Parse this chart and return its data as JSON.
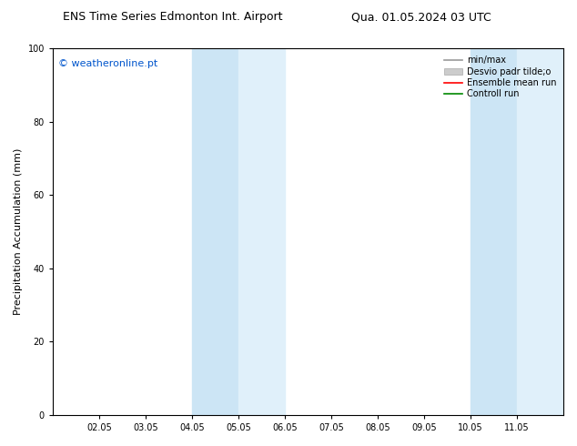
{
  "title_left": "ENS Time Series Edmonton Int. Airport",
  "title_right": "Qua. 01.05.2024 03 UTC",
  "ylabel": "Precipitation Accumulation (mm)",
  "ylim": [
    0,
    100
  ],
  "yticks": [
    0,
    20,
    40,
    60,
    80,
    100
  ],
  "xtick_labels": [
    "02.05",
    "03.05",
    "04.05",
    "05.05",
    "06.05",
    "07.05",
    "08.05",
    "09.05",
    "10.05",
    "11.05"
  ],
  "xtick_positions": [
    2,
    3,
    4,
    5,
    6,
    7,
    8,
    9,
    10,
    11
  ],
  "x_min": 1.0,
  "x_max": 12.0,
  "watermark": "© weatheronline.pt",
  "watermark_color": "#0055cc",
  "shaded_bands": [
    {
      "xstart": 4.0,
      "xend": 5.0,
      "color": "#cce5f5"
    },
    {
      "xstart": 5.0,
      "xend": 6.0,
      "color": "#e0f0fa"
    },
    {
      "xstart": 10.0,
      "xend": 11.0,
      "color": "#cce5f5"
    },
    {
      "xstart": 11.0,
      "xend": 12.0,
      "color": "#e0f0fa"
    }
  ],
  "legend_entries": [
    {
      "label": "min/max",
      "color": "#999999",
      "lw": 1.2,
      "type": "line"
    },
    {
      "label": "Desvio padr tilde;o",
      "color": "#cccccc",
      "lw": 5,
      "type": "band"
    },
    {
      "label": "Ensemble mean run",
      "color": "#ff0000",
      "lw": 1.2,
      "type": "line"
    },
    {
      "label": "Controll run",
      "color": "#008800",
      "lw": 1.2,
      "type": "line"
    }
  ],
  "background_color": "#ffffff",
  "plot_bg_color": "#ffffff",
  "border_color": "#000000",
  "title_fontsize": 9,
  "tick_fontsize": 7,
  "ylabel_fontsize": 8,
  "watermark_fontsize": 8,
  "legend_fontsize": 7
}
